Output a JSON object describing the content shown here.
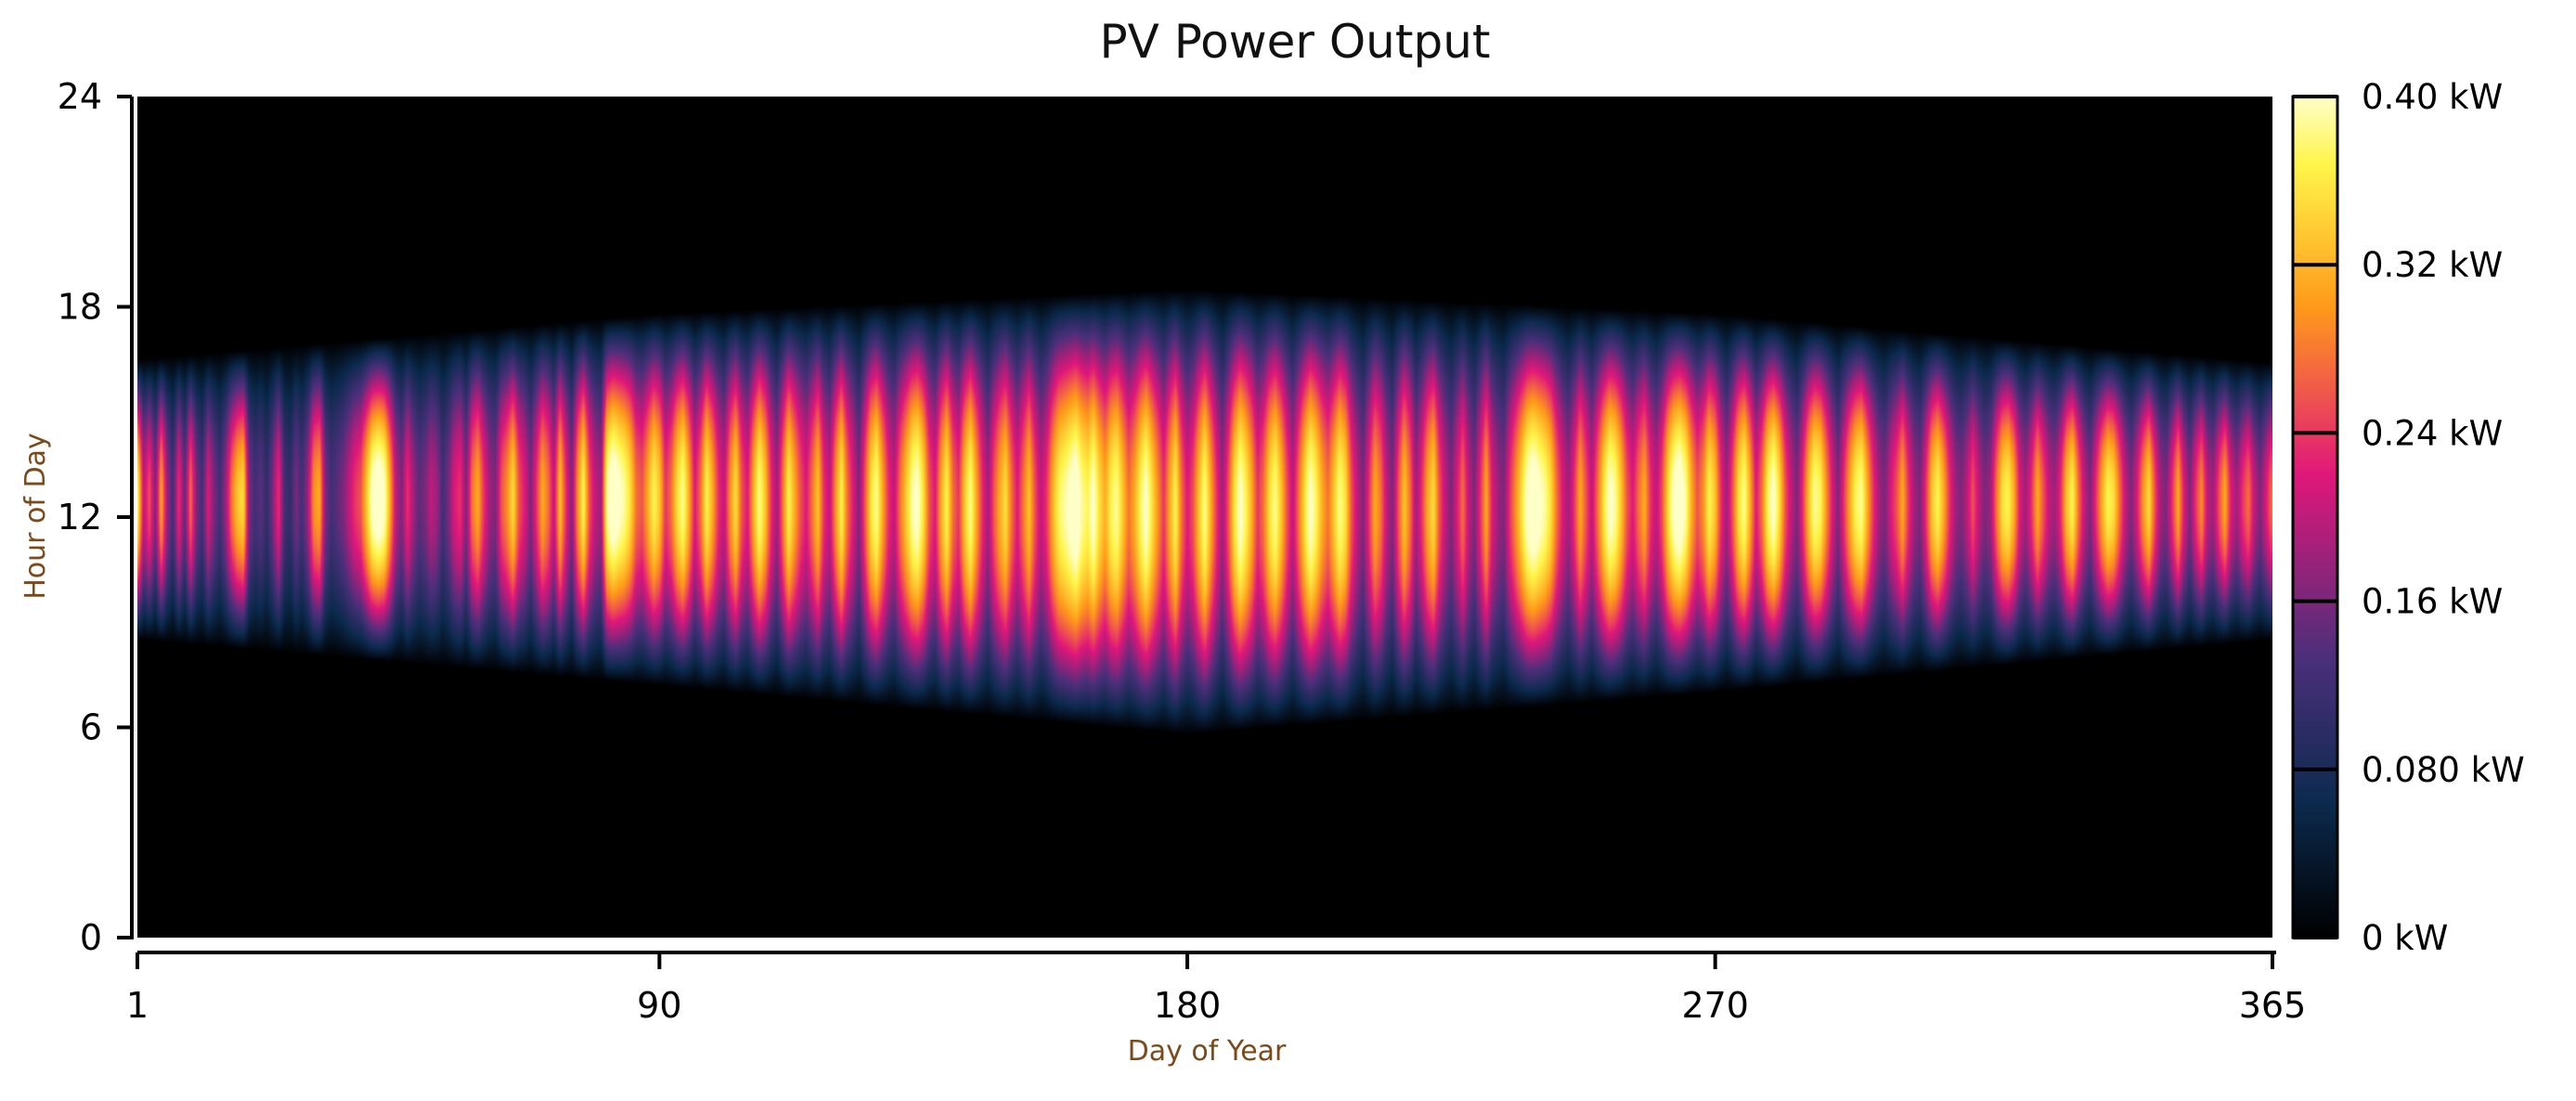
{
  "chart_data": {
    "type": "heatmap",
    "title": "PV Power Output",
    "xlabel": "Day of Year",
    "ylabel": "Hour of Day",
    "x_range": [
      1,
      365
    ],
    "y_range": [
      0,
      24
    ],
    "x_ticks": [
      1,
      90,
      180,
      270,
      365
    ],
    "x_tick_labels": [
      "1",
      "90",
      "180",
      "270",
      "365"
    ],
    "y_ticks": [
      0,
      6,
      12,
      18,
      24
    ],
    "y_tick_labels": [
      "0",
      "6",
      "12",
      "18",
      "24"
    ],
    "value_range_kw": [
      0,
      0.4
    ],
    "colorbar": {
      "ticks": [
        0,
        0.08,
        0.16,
        0.24,
        0.32,
        0.4
      ],
      "labels": [
        "0 kW",
        "0.080 kW",
        "0.16 kW",
        "0.24 kW",
        "0.32 kW",
        "0.40 kW"
      ],
      "colormap": "inferno-like",
      "stops": [
        "#000000",
        "#0c2a4e",
        "#4a2f7a",
        "#e0177a",
        "#ff9a1a",
        "#fff54a",
        "#ffffc8"
      ]
    },
    "daylight_window_hours": {
      "sunrise_by_day": [
        [
          1,
          8.5
        ],
        [
          90,
          7.2
        ],
        [
          180,
          5.8
        ],
        [
          270,
          7.0
        ],
        [
          365,
          8.5
        ]
      ],
      "sunset_by_day": [
        [
          1,
          16.5
        ],
        [
          90,
          17.8
        ],
        [
          180,
          18.5
        ],
        [
          270,
          17.8
        ],
        [
          365,
          16.4
        ]
      ],
      "peak_hour": 12.5
    },
    "daily_clearness": [
      0.85,
      0.4,
      0.55,
      0.3,
      0.7,
      0.35,
      0.2,
      0.5,
      0.25,
      0.6,
      0.3,
      0.2,
      0.45,
      0.3,
      0.2,
      0.35,
      0.6,
      0.75,
      0.8,
      0.3,
      0.2,
      0.25,
      0.15,
      0.3,
      0.5,
      0.2,
      0.15,
      0.3,
      0.2,
      0.35,
      0.65,
      0.7,
      0.3,
      0.2,
      0.25,
      0.3,
      0.4,
      0.5,
      0.55,
      0.75,
      0.95,
      1.0,
      0.95,
      0.7,
      0.4,
      0.3,
      0.5,
      0.35,
      0.25,
      0.3,
      0.4,
      0.35,
      0.2,
      0.3,
      0.45,
      0.5,
      0.3,
      0.6,
      0.7,
      0.5,
      0.35,
      0.3,
      0.55,
      0.65,
      0.8,
      0.55,
      0.45,
      0.3,
      0.5,
      0.7,
      0.6,
      0.4,
      0.75,
      0.5,
      0.3,
      0.65,
      0.85,
      0.55,
      0.4,
      0.35,
      0.9,
      1.0,
      0.95,
      0.9,
      0.8,
      0.6,
      0.55,
      0.7,
      0.85,
      0.75,
      0.5,
      0.6,
      0.8,
      0.9,
      0.7,
      0.45,
      0.6,
      0.85,
      0.7,
      0.5,
      0.4,
      0.65,
      0.8,
      0.55,
      0.45,
      0.7,
      0.9,
      0.75,
      0.5,
      0.35,
      0.6,
      0.85,
      0.7,
      0.55,
      0.45,
      0.6,
      0.75,
      0.5,
      0.4,
      0.65,
      0.85,
      0.6,
      0.45,
      0.3,
      0.55,
      0.8,
      0.9,
      0.7,
      0.5,
      0.4,
      0.6,
      0.75,
      0.9,
      0.95,
      0.8,
      0.55,
      0.45,
      0.7,
      0.85,
      0.6,
      0.5,
      0.75,
      0.9,
      0.7,
      0.5,
      0.35,
      0.55,
      0.7,
      0.8,
      0.6,
      0.45,
      0.6,
      0.75,
      0.55,
      0.4,
      0.5,
      0.7,
      0.85,
      0.9,
      0.95,
      1.0,
      0.9,
      0.85,
      0.95,
      0.8,
      0.7,
      0.85,
      0.9,
      0.75,
      0.6,
      0.7,
      0.85,
      0.95,
      0.8,
      0.65,
      0.5,
      0.7,
      0.85,
      0.6,
      0.45,
      0.55,
      0.75,
      0.9,
      0.7,
      0.5,
      0.35,
      0.55,
      0.8,
      0.95,
      0.85,
      0.7,
      0.5,
      0.6,
      0.8,
      0.9,
      0.75,
      0.55,
      0.4,
      0.6,
      0.8,
      0.95,
      0.85,
      0.7,
      0.6,
      0.75,
      0.9,
      0.8,
      0.55,
      0.4,
      0.3,
      0.5,
      0.7,
      0.6,
      0.4,
      0.3,
      0.55,
      0.75,
      0.6,
      0.35,
      0.5,
      0.7,
      0.8,
      0.55,
      0.4,
      0.3,
      0.45,
      0.6,
      0.4,
      0.3,
      0.5,
      0.7,
      0.45,
      0.35,
      0.3,
      0.5,
      0.65,
      0.8,
      0.95,
      1.0,
      0.95,
      0.9,
      0.8,
      0.6,
      0.45,
      0.35,
      0.5,
      0.7,
      0.55,
      0.4,
      0.6,
      0.8,
      0.95,
      0.9,
      0.75,
      0.55,
      0.45,
      0.6,
      0.7,
      0.5,
      0.4,
      0.55,
      0.8,
      0.95,
      1.0,
      0.9,
      0.7,
      0.55,
      0.65,
      0.85,
      0.75,
      0.5,
      0.35,
      0.55,
      0.8,
      0.9,
      0.7,
      0.45,
      0.6,
      0.85,
      0.95,
      0.8,
      0.55,
      0.4,
      0.3,
      0.5,
      0.75,
      0.9,
      0.85,
      0.65,
      0.45,
      0.3,
      0.5,
      0.7,
      0.85,
      0.9,
      0.7,
      0.5,
      0.35,
      0.3,
      0.45,
      0.55,
      0.7,
      0.5,
      0.35,
      0.3,
      0.5,
      0.75,
      0.85,
      0.7,
      0.5,
      0.35,
      0.3,
      0.4,
      0.55,
      0.4,
      0.3,
      0.35,
      0.6,
      0.8,
      0.85,
      0.7,
      0.45,
      0.35,
      0.5,
      0.7,
      0.55,
      0.4,
      0.35,
      0.5,
      0.75,
      0.85,
      0.6,
      0.4,
      0.3,
      0.5,
      0.7,
      0.85,
      0.8,
      0.6,
      0.4,
      0.3,
      0.45,
      0.65,
      0.8,
      0.55,
      0.35,
      0.3,
      0.5,
      0.7,
      0.45,
      0.3,
      0.5,
      0.65,
      0.4,
      0.35,
      0.55,
      0.7,
      0.45,
      0.35,
      0.5,
      0.6,
      0.4,
      0.3,
      0.45,
      0.6
    ]
  }
}
